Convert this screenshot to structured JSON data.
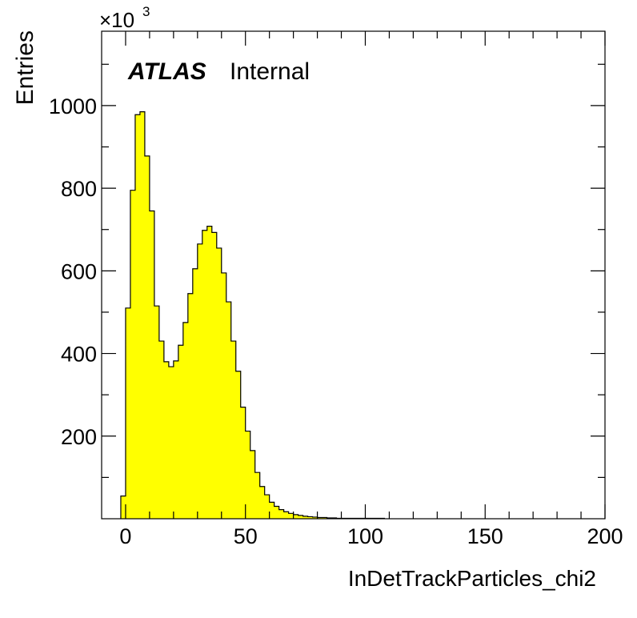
{
  "chart_data": {
    "type": "histogram",
    "title": "",
    "xlabel": "InDetTrackParticles_chi2",
    "ylabel": "Entries",
    "exponent_label": "×10",
    "exponent_power": "3",
    "experiment_label": "ATLAS",
    "status_label": "Internal",
    "xlim": [
      -10,
      200
    ],
    "ylim": [
      0,
      1180
    ],
    "x_ticks": [
      0,
      50,
      100,
      150,
      200
    ],
    "y_ticks": [
      200,
      400,
      600,
      800,
      1000
    ],
    "x_tick_labels": [
      "0",
      "50",
      "100",
      "150",
      "200"
    ],
    "y_tick_labels": [
      "200",
      "400",
      "600",
      "800",
      "1000"
    ],
    "bin_width": 2,
    "bin_start": -2,
    "values": [
      55,
      510,
      795,
      978,
      985,
      878,
      745,
      515,
      430,
      380,
      368,
      382,
      420,
      475,
      545,
      605,
      665,
      698,
      708,
      693,
      655,
      595,
      525,
      430,
      357,
      270,
      212,
      165,
      112,
      78,
      58,
      40,
      30,
      22,
      17,
      13,
      10,
      8,
      6,
      5,
      4,
      3,
      3,
      2,
      2,
      1,
      1,
      1,
      1,
      1,
      1,
      1,
      1,
      1,
      1
    ],
    "fill_color": "#ffff00",
    "line_color": "#000000",
    "grid": false,
    "legend": false
  }
}
